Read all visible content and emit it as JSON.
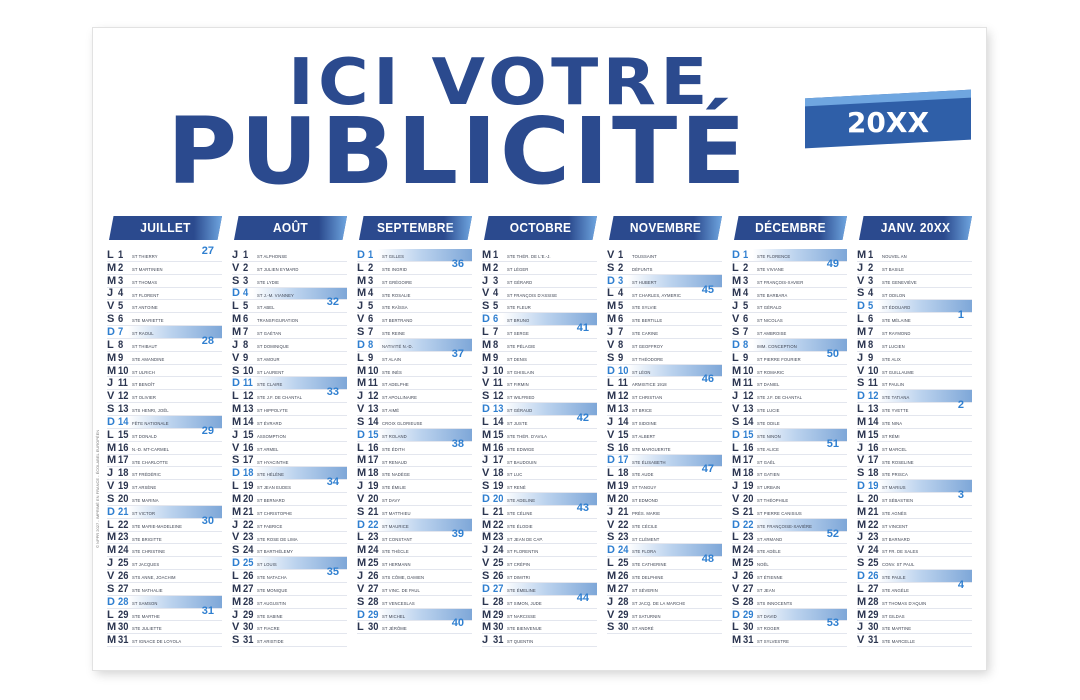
{
  "headline": {
    "line1": "ICI VOTRE",
    "line2": "PUBLICITÉ"
  },
  "year": "20XX",
  "colors": {
    "primary": "#2b4a8e",
    "accent": "#6fa6e0",
    "sunday": "#2f7fd0"
  },
  "side_note": "© NPPR 2027 - IMPRIMÉ EN FRANCE - ÉCOLABEL EUROPÉEN",
  "months": [
    {
      "name": "JUILLET",
      "start": 0,
      "weeks": {
        "1": "27",
        "8": "28",
        "15": "29",
        "22": "30",
        "29": "31"
      }
    },
    {
      "name": "AOÛT",
      "start": 3,
      "weeks": {
        "5": "32",
        "12": "33",
        "19": "34",
        "26": "35"
      }
    },
    {
      "name": "SEPTEMBRE",
      "start": 6,
      "weeks": {
        "2": "36",
        "9": "37",
        "16": "38",
        "23": "39",
        "30": "40"
      }
    },
    {
      "name": "OCTOBRE",
      "start": 1,
      "weeks": {
        "7": "41",
        "14": "42",
        "21": "43",
        "28": "44"
      }
    },
    {
      "name": "NOVEMBRE",
      "start": 4,
      "weeks": {
        "4": "45",
        "11": "46",
        "18": "47",
        "25": "48"
      }
    },
    {
      "name": "DÉCEMBRE",
      "start": 6,
      "weeks": {
        "2": "49",
        "9": "50",
        "16": "51",
        "23": "52",
        "30": "53"
      }
    },
    {
      "name": "JANV. 20XX",
      "start": 2,
      "weeks": {
        "6": "1",
        "13": "2",
        "20": "3",
        "27": "4"
      }
    }
  ],
  "weekday_letters": [
    "L",
    "M",
    "M",
    "J",
    "V",
    "S",
    "D"
  ],
  "saints": {
    "JUILLET": [
      "ST THIERRY",
      "ST MARTINIEN",
      "ST THOMAS",
      "ST FLORENT",
      "ST ANTOINE",
      "STE MARIETTE",
      "ST RAOUL",
      "ST THIBAUT",
      "STE AMANDINE",
      "ST ULRICH",
      "ST BENOÎT",
      "ST OLIVIER",
      "STS HENRI, JOËL",
      "FÊTE NATIONALE",
      "ST DONALD",
      "N.-D. MT-CARMEL",
      "STE CHARLOTTE",
      "ST FRÉDÉRIC",
      "ST ARSÈNE",
      "STE MARINA",
      "ST VICTOR",
      "STE MARIE-MADELEINE",
      "STE BRIGITTE",
      "STE CHRISTINE",
      "ST JACQUES",
      "STS ANNE, JOACHIM",
      "STE NATHALIE",
      "ST SAMSON",
      "STE MARTHE",
      "STE JULIETTE",
      "ST IGNACE DE LOYOLA"
    ],
    "AOÛT": [
      "ST ALPHONSE",
      "ST JULIEN EYMARD",
      "STE LYDIE",
      "ST J.-M. VIANNEY",
      "ST ABEL",
      "TRANSFIGURATION",
      "ST GAÉTAN",
      "ST DOMINIQUE",
      "ST AMOUR",
      "ST LAURENT",
      "STE CLAIRE",
      "STE J.F. DE CHANTAL",
      "ST HIPPOLYTE",
      "ST ÉVRARD",
      "ASSOMPTION",
      "ST ARMEL",
      "ST HYACINTHE",
      "STE HÉLÈNE",
      "ST JEAN EUDES",
      "ST BERNARD",
      "ST CHRISTOPHE",
      "ST FABRICE",
      "STE ROSE DE LIMA",
      "ST BARTHÉLEMY",
      "ST LOUIS",
      "STE NATACHA",
      "STE MONIQUE",
      "ST AUGUSTIN",
      "STE SABINE",
      "ST FIACRE",
      "ST ARISTIDE"
    ],
    "SEPTEMBRE": [
      "ST GILLES",
      "STE INGRID",
      "ST GRÉGOIRE",
      "STE ROSALIE",
      "STE RAÏSSA",
      "ST BERTRAND",
      "STE REINE",
      "NATIVITÉ N.-D.",
      "ST ALAIN",
      "STE INÈS",
      "ST ADELPHE",
      "ST APOLLINAIRE",
      "ST AIMÉ",
      "CROIX GLORIEUSE",
      "ST ROLAND",
      "STE ÉDITH",
      "ST RENAUD",
      "STE NADÈGE",
      "STE ÉMILIE",
      "ST DAVY",
      "ST MATTHIEU",
      "ST MAURICE",
      "ST CONSTANT",
      "STE THÈCLE",
      "ST HERMANN",
      "STS CÔME, DAMIEN",
      "ST VINC. DE PAUL",
      "ST VENCESLAS",
      "ST MICHEL",
      "ST JÉRÔME"
    ],
    "OCTOBRE": [
      "STE THÉR. DE L'E.-J.",
      "ST LÉGER",
      "ST GÉRARD",
      "ST FRANÇOIS D'ASSISE",
      "STE FLEUR",
      "ST BRUNO",
      "ST SERGE",
      "STE PÉLAGIE",
      "ST DENIS",
      "ST GHISLAIN",
      "ST FIRMIN",
      "ST WILFRIED",
      "ST GÉRAUD",
      "ST JUSTE",
      "STE THÉR. D'AVILA",
      "STE EDWIGE",
      "ST BAUDOUIN",
      "ST LUC",
      "ST RENÉ",
      "STE ADELINE",
      "STE CÉLINE",
      "STE ÉLODIE",
      "ST JEAN DE CAP.",
      "ST FLORENTIN",
      "ST CRÉPIN",
      "ST DIMITRI",
      "STE ÉMELINE",
      "ST SIMON, JUDE",
      "ST NARCISSE",
      "STE BIENVENUE",
      "ST QUENTIN"
    ],
    "NOVEMBRE": [
      "TOUSSAINT",
      "DÉFUNTS",
      "ST HUBERT",
      "ST CHARLES, AYMERIC",
      "STE SYLVIE",
      "STE BERTILLE",
      "STE CARINE",
      "ST GEOFFROY",
      "ST THÉODORE",
      "ST LÉON",
      "ARMISTICE 1918",
      "ST CHRISTIAN",
      "ST BRICE",
      "ST SIDOINE",
      "ST ALBERT",
      "STE MARGUERITE",
      "STE ÉLISABETH",
      "STE AUDE",
      "ST TANGUY",
      "ST EDMOND",
      "PRÉS. MARIE",
      "STE CÉCILE",
      "ST CLÉMENT",
      "STE FLORA",
      "STE CATHERINE",
      "STE DELPHINE",
      "ST SÉVERIN",
      "ST JACQ. DE LA MARCHE",
      "ST SATURNIN",
      "ST ANDRÉ"
    ],
    "DÉCEMBRE": [
      "STE FLORENCE",
      "STE VIVIANE",
      "ST FRANÇOIS-XAVIER",
      "STE BARBARA",
      "ST GÉRALD",
      "ST NICOLAS",
      "ST AMBROISE",
      "IMM. CONCEPTION",
      "ST PIERRE FOURIER",
      "ST ROMARIC",
      "ST DANIEL",
      "STE J.F. DE CHANTAL",
      "STE LUCIE",
      "STE ODILE",
      "STE NINON",
      "STE ALICE",
      "ST GAËL",
      "ST GATIEN",
      "ST URBAIN",
      "ST THÉOPHILE",
      "ST PIERRE CANISIUS",
      "STE FRANÇOISE-XAVIÈRE",
      "ST ARMAND",
      "STE ADÈLE",
      "NOËL",
      "ST ÉTIENNE",
      "ST JEAN",
      "STS INNOCENTS",
      "ST DAVID",
      "ST ROGER",
      "ST SYLVESTRE"
    ],
    "JANV. 20XX": [
      "NOUVEL AN",
      "ST BASILE",
      "STE GENEVIÈVE",
      "ST ODILON",
      "ST ÉDOUARD",
      "STE MÉLAINE",
      "ST RAYMOND",
      "ST LUCIEN",
      "STE ALIX",
      "ST GUILLAUME",
      "ST PAULIN",
      "STE TATIANA",
      "STE YVETTE",
      "STE NINA",
      "ST RÉMI",
      "ST MARCEL",
      "STE ROSELINE",
      "STE PRISCA",
      "ST MARIUS",
      "ST SÉBASTIEN",
      "STE AGNÈS",
      "ST VINCENT",
      "ST BARNARD",
      "ST FR. DE SALES",
      "CONV. ST PAUL",
      "STE PAULE",
      "STE ANGÈLE",
      "ST THOMAS D'AQUIN",
      "ST GILDAS",
      "STE MARTINE",
      "STE MARCELLE"
    ]
  }
}
